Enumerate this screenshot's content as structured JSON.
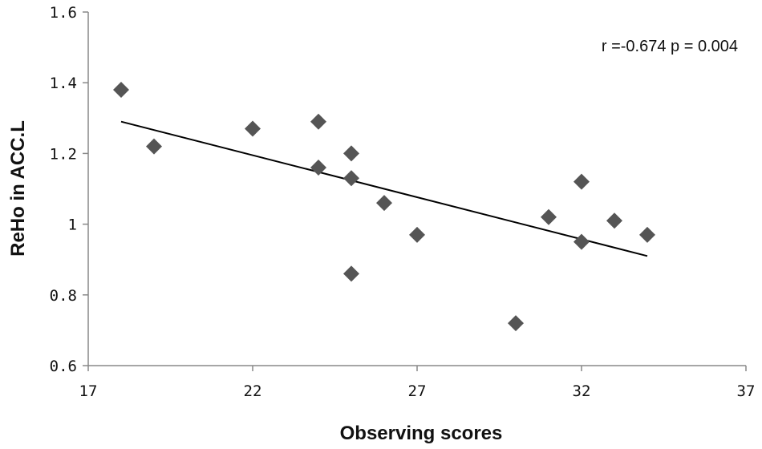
{
  "chart_data": {
    "type": "scatter",
    "xlabel": "Observing scores",
    "ylabel": "ReHo in ACC.L",
    "xlim": [
      17,
      37
    ],
    "ylim": [
      0.6,
      1.6
    ],
    "xticks": [
      "17",
      "22",
      "27",
      "32",
      "37"
    ],
    "yticks": [
      "0.6",
      "0.8",
      "1",
      "1.2",
      "1.4",
      "1.6"
    ],
    "annotation": "r =-0.674 p = 0.004",
    "marker_color": "#555555",
    "grid": false,
    "points": [
      {
        "x": 18,
        "y": 1.38
      },
      {
        "x": 19,
        "y": 1.22
      },
      {
        "x": 22,
        "y": 1.27
      },
      {
        "x": 24,
        "y": 1.29
      },
      {
        "x": 24,
        "y": 1.16
      },
      {
        "x": 25,
        "y": 1.2
      },
      {
        "x": 25,
        "y": 1.13
      },
      {
        "x": 25,
        "y": 0.86
      },
      {
        "x": 26,
        "y": 1.06
      },
      {
        "x": 27,
        "y": 0.97
      },
      {
        "x": 30,
        "y": 0.72
      },
      {
        "x": 31,
        "y": 1.02
      },
      {
        "x": 32,
        "y": 1.12
      },
      {
        "x": 32,
        "y": 0.95
      },
      {
        "x": 33,
        "y": 1.01
      },
      {
        "x": 34,
        "y": 0.97
      }
    ],
    "trendline": {
      "x": [
        18,
        34
      ],
      "y": [
        1.29,
        0.91
      ]
    }
  }
}
